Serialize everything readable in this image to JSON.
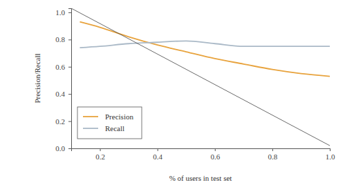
{
  "chart_data": {
    "type": "line",
    "x_label": "% of users in test set",
    "y_label": "Precision/Recall",
    "xlim": [
      0.1,
      1.0
    ],
    "ylim": [
      0,
      1.03
    ],
    "xticks": [
      0.2,
      0.4,
      0.6,
      0.8,
      {
        "value": 1,
        "label": "1.0"
      }
    ],
    "yticks": [
      {
        "value": 0,
        "label": "0.0"
      },
      0.2,
      0.4,
      0.6,
      0.8,
      {
        "value": 1,
        "label": "1.0"
      }
    ],
    "legend": "lower left",
    "series": [
      {
        "name": "Precision",
        "color": "#e8a33d",
        "x": [
          0.13,
          0.2,
          0.3,
          0.4,
          0.5,
          0.6,
          0.7,
          0.8,
          0.9,
          1.0
        ],
        "values": [
          0.93,
          0.89,
          0.82,
          0.76,
          0.71,
          0.66,
          0.62,
          0.58,
          0.55,
          0.53
        ]
      },
      {
        "name": "Recall",
        "color": "#aab9c7",
        "x": [
          0.13,
          0.2,
          0.3,
          0.4,
          0.5,
          0.6,
          0.7,
          0.8,
          0.9,
          1.0
        ],
        "values": [
          0.74,
          0.75,
          0.77,
          0.78,
          0.79,
          0.77,
          0.75,
          0.75,
          0.75,
          0.75
        ]
      },
      {
        "color": "#444444",
        "x": [
          0.1,
          1.0
        ],
        "values": [
          1.03,
          0.02
        ]
      }
    ]
  }
}
